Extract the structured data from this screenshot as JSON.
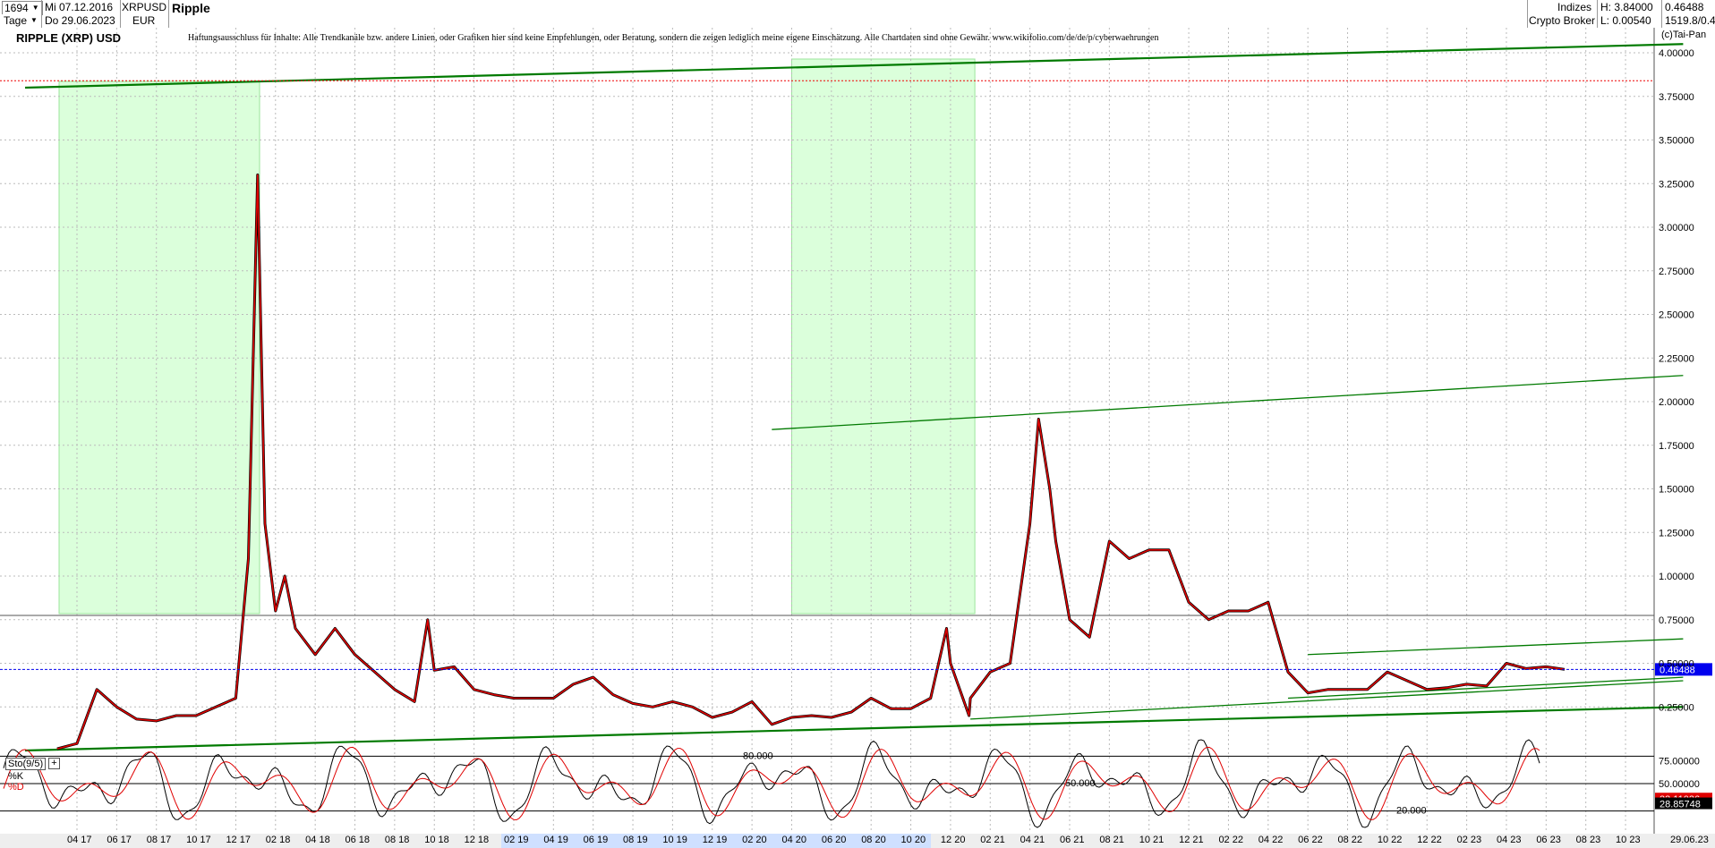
{
  "header": {
    "count": "1694",
    "date_from": "Mi 07.12.2016",
    "symbol": "XRPUSD",
    "name": "Ripple",
    "period": "Tage",
    "date_to": "Do 29.06.2023",
    "currency": "EUR",
    "category": "Indizes",
    "source": "Crypto Broker",
    "high_label": "H: 3.84000",
    "low_label": "L: 0.00540",
    "last_value": "0.46488",
    "extra_value": "1519.8/0.4"
  },
  "chart_title": "RIPPLE (XRP) USD",
  "disclaimer": "Haftungsausschluss für Inhalte: Alle Trendkanäle bzw. andere Linien, oder Grafiken hier sind keine Empfehlungen, oder Beratung, sondern die zeigen lediglich meine eigene Einschätzung. Alle Chartdaten sind ohne Gewähr. www.wikifolio.com/de/de/p/cyberwaehrungen",
  "watermark": "(c)Tai-Pan",
  "colors": {
    "price": "#e00000",
    "candle": "#000000",
    "trend": "#007a00",
    "zone": "#ccffcc",
    "current": "#0000ee",
    "high_line": "#ee0000",
    "osc_k": "#000000",
    "osc_d": "#e00000"
  },
  "chart_data": [
    {
      "type": "line",
      "title": "RIPPLE (XRP) USD",
      "xlabel": "",
      "ylabel": "",
      "ylim": [
        0,
        4.1
      ],
      "grid": true,
      "y_ticks": [
        "4.00000",
        "3.75000",
        "3.50000",
        "3.25000",
        "3.00000",
        "2.75000",
        "2.50000",
        "2.25000",
        "2.00000",
        "1.75000",
        "1.50000",
        "1.25000",
        "1.00000",
        "0.75000",
        "0.50000",
        "0.25000"
      ],
      "x_ticks": [
        "04 17",
        "06 17",
        "08 17",
        "10 17",
        "12 17",
        "02 18",
        "04 18",
        "06 18",
        "08 18",
        "10 18",
        "12 18",
        "02 19",
        "04 19",
        "06 19",
        "08 19",
        "10 19",
        "12 19",
        "02 20",
        "04 20",
        "06 20",
        "08 20",
        "10 20",
        "12 20",
        "02 21",
        "04 21",
        "06 21",
        "08 21",
        "10 21",
        "12 21",
        "02 22",
        "04 22",
        "06 22",
        "08 22",
        "10 22",
        "12 22",
        "02 23",
        "04 23",
        "06 23",
        "08 23",
        "10 23"
      ],
      "x_end_label": "29.06.23",
      "current_value": 0.46488,
      "current_label": "0.46488",
      "high_value": 3.84,
      "series": [
        {
          "x": [
            "2017-03",
            "2017-04",
            "2017-05",
            "2017-06",
            "2017-07",
            "2017-08",
            "2017-09",
            "2017-10",
            "2017-11",
            "2017-12",
            "2017-12-20",
            "2018-01-04",
            "2018-01-15",
            "2018-02",
            "2018-02-15",
            "2018-03",
            "2018-04",
            "2018-05",
            "2018-06",
            "2018-07",
            "2018-08",
            "2018-09",
            "2018-09-21",
            "2018-10",
            "2018-11",
            "2018-12",
            "2019-01",
            "2019-02",
            "2019-03",
            "2019-04",
            "2019-05",
            "2019-06",
            "2019-07",
            "2019-08",
            "2019-09",
            "2019-10",
            "2019-11",
            "2019-12",
            "2020-01",
            "2020-02",
            "2020-03",
            "2020-04",
            "2020-05",
            "2020-06",
            "2020-07",
            "2020-08",
            "2020-09",
            "2020-10",
            "2020-11",
            "2020-11-25",
            "2020-12",
            "2020-12-29",
            "2021-01",
            "2021-02",
            "2021-03",
            "2021-04",
            "2021-04-14",
            "2021-05",
            "2021-05-10",
            "2021-06",
            "2021-07",
            "2021-08",
            "2021-09",
            "2021-10",
            "2021-11",
            "2021-12",
            "2022-01",
            "2022-02",
            "2022-03",
            "2022-04",
            "2022-05",
            "2022-06",
            "2022-07",
            "2022-08",
            "2022-09",
            "2022-10",
            "2022-11",
            "2022-12",
            "2023-01",
            "2023-02",
            "2023-03",
            "2023-04",
            "2023-05",
            "2023-06",
            "2023-06-29"
          ],
          "values": [
            0.01,
            0.04,
            0.35,
            0.25,
            0.18,
            0.17,
            0.2,
            0.2,
            0.25,
            0.3,
            1.1,
            3.3,
            1.3,
            0.8,
            1.0,
            0.7,
            0.55,
            0.7,
            0.55,
            0.45,
            0.35,
            0.28,
            0.75,
            0.46,
            0.48,
            0.35,
            0.32,
            0.3,
            0.3,
            0.3,
            0.38,
            0.42,
            0.32,
            0.27,
            0.25,
            0.28,
            0.25,
            0.19,
            0.22,
            0.28,
            0.15,
            0.19,
            0.2,
            0.19,
            0.22,
            0.3,
            0.24,
            0.24,
            0.3,
            0.7,
            0.5,
            0.2,
            0.3,
            0.45,
            0.5,
            1.3,
            1.9,
            1.5,
            1.2,
            0.75,
            0.65,
            1.2,
            1.1,
            1.15,
            1.15,
            0.85,
            0.75,
            0.8,
            0.8,
            0.85,
            0.45,
            0.33,
            0.35,
            0.35,
            0.35,
            0.45,
            0.4,
            0.35,
            0.36,
            0.38,
            0.37,
            0.5,
            0.47,
            0.48,
            0.46488
          ]
        }
      ]
    },
    {
      "type": "line",
      "title": "Sto(9/5)",
      "ylim": [
        0,
        100
      ],
      "legend": [
        "%K",
        "%D"
      ],
      "levels": [
        80,
        50,
        20
      ],
      "level_labels": [
        "80.000",
        "50.000",
        "20.000"
      ],
      "y_ticks": [
        "75.00000",
        "50.00000"
      ],
      "k_label": "33.11036",
      "d_label": "28.85748"
    }
  ],
  "sto_label": "Sto(9/5)",
  "k_label": "%K",
  "d_label": "%D"
}
